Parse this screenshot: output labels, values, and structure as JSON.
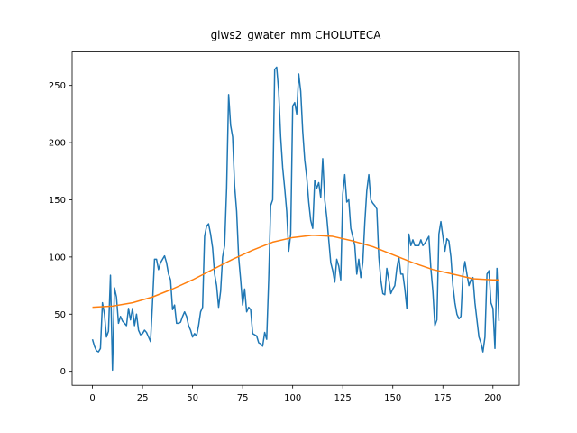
{
  "chart_data": {
    "type": "line",
    "title": "glws2_gwater_mm CHOLUTECA",
    "x": [
      0,
      1,
      2,
      3,
      4,
      5,
      6,
      7,
      8,
      9,
      10,
      11,
      12,
      13,
      14,
      15,
      16,
      17,
      18,
      19,
      20,
      21,
      22,
      23,
      24,
      25,
      26,
      27,
      28,
      29,
      30,
      31,
      32,
      33,
      34,
      35,
      36,
      37,
      38,
      39,
      40,
      41,
      42,
      43,
      44,
      45,
      46,
      47,
      48,
      49,
      50,
      51,
      52,
      53,
      54,
      55,
      56,
      57,
      58,
      59,
      60,
      61,
      62,
      63,
      64,
      65,
      66,
      67,
      68,
      69,
      70,
      71,
      72,
      73,
      74,
      75,
      76,
      77,
      78,
      79,
      80,
      81,
      82,
      83,
      84,
      85,
      86,
      87,
      88,
      89,
      90,
      91,
      92,
      93,
      94,
      95,
      96,
      97,
      98,
      99,
      100,
      101,
      102,
      103,
      104,
      105,
      106,
      107,
      108,
      109,
      110,
      111,
      112,
      113,
      114,
      115,
      116,
      117,
      118,
      119,
      120,
      121,
      122,
      123,
      124,
      125,
      126,
      127,
      128,
      129,
      130,
      131,
      132,
      133,
      134,
      135,
      136,
      137,
      138,
      139,
      140,
      141,
      142,
      143,
      144,
      145,
      146,
      147,
      148,
      149,
      150,
      151,
      152,
      153,
      154,
      155,
      156,
      157,
      158,
      159,
      160,
      161,
      162,
      163,
      164,
      165,
      166,
      167,
      168,
      169,
      170,
      171,
      172,
      173,
      174,
      175,
      176,
      177,
      178,
      179,
      180,
      181,
      182,
      183,
      184,
      185,
      186,
      187,
      188,
      189,
      190,
      191,
      192,
      193,
      194,
      195,
      196,
      197,
      198,
      199,
      200,
      201,
      202,
      203
    ],
    "series": [
      {
        "color": "#1f77b4",
        "values": [
          28,
          22,
          18,
          17,
          20,
          60,
          50,
          30,
          35,
          84,
          1,
          73,
          65,
          42,
          48,
          44,
          42,
          40,
          55,
          45,
          55,
          40,
          50,
          36,
          32,
          33,
          36,
          34,
          30,
          26,
          60,
          98,
          98,
          89,
          95,
          98,
          101,
          95,
          85,
          80,
          54,
          58,
          42,
          42,
          43,
          48,
          52,
          48,
          40,
          36,
          30,
          33,
          31,
          40,
          52,
          56,
          118,
          127,
          129,
          120,
          108,
          85,
          75,
          56,
          70,
          100,
          110,
          160,
          242,
          215,
          205,
          162,
          140,
          100,
          80,
          58,
          72,
          52,
          56,
          54,
          33,
          32,
          31,
          25,
          24,
          22,
          34,
          28,
          80,
          145,
          150,
          264,
          266,
          245,
          205,
          178,
          160,
          140,
          105,
          120,
          232,
          235,
          225,
          260,
          245,
          210,
          185,
          170,
          148,
          132,
          125,
          167,
          160,
          165,
          152,
          186,
          150,
          135,
          115,
          95,
          88,
          78,
          98,
          92,
          80,
          155,
          172,
          148,
          150,
          125,
          118,
          110,
          85,
          98,
          82,
          95,
          130,
          158,
          172,
          150,
          147,
          145,
          142,
          100,
          80,
          68,
          67,
          90,
          80,
          68,
          72,
          75,
          90,
          100,
          85,
          85,
          72,
          55,
          120,
          110,
          115,
          110,
          110,
          110,
          115,
          110,
          112,
          115,
          118,
          90,
          70,
          40,
          45,
          120,
          131,
          118,
          105,
          116,
          114,
          100,
          75,
          60,
          50,
          46,
          48,
          85,
          96,
          85,
          75,
          80,
          82,
          60,
          45,
          30,
          25,
          17,
          30,
          85,
          88,
          60,
          55,
          20,
          90,
          44
        ]
      },
      {
        "color": "#ff7f0e",
        "x": [
          0,
          10,
          20,
          30,
          40,
          50,
          60,
          70,
          80,
          90,
          100,
          110,
          120,
          130,
          140,
          150,
          160,
          170,
          180,
          190,
          200,
          203
        ],
        "values": [
          56,
          57,
          60,
          65,
          72,
          80,
          89,
          98,
          106,
          113,
          117,
          119,
          118,
          114,
          109,
          102,
          95,
          89,
          85,
          81,
          80,
          80
        ]
      }
    ],
    "xlim": [
      -10.15,
      213.15
    ],
    "ylim": [
      -12.25,
      279.25
    ],
    "xticks": [
      0,
      25,
      50,
      75,
      100,
      125,
      150,
      175,
      200
    ],
    "yticks": [
      0,
      50,
      100,
      150,
      200,
      250
    ]
  }
}
